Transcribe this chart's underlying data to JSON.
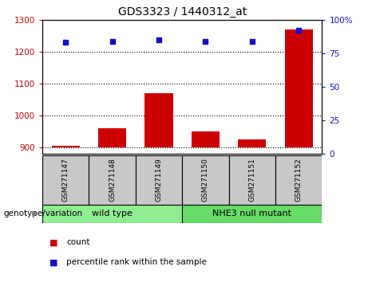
{
  "title": "GDS3323 / 1440312_at",
  "samples": [
    "GSM271147",
    "GSM271148",
    "GSM271149",
    "GSM271150",
    "GSM271151",
    "GSM271152"
  ],
  "counts": [
    906,
    960,
    1070,
    950,
    925,
    1270
  ],
  "percentile_ranks": [
    83,
    84,
    85,
    84,
    84,
    92
  ],
  "ylim_left": [
    880,
    1300
  ],
  "ylim_right": [
    0,
    100
  ],
  "yticks_left": [
    900,
    1000,
    1100,
    1200,
    1300
  ],
  "yticks_right": [
    0,
    25,
    50,
    75,
    100
  ],
  "bar_color": "#cc0000",
  "dot_color": "#1111cc",
  "xlabel": "genotype/variation",
  "legend_count_label": "count",
  "legend_percentile_label": "percentile rank within the sample",
  "bar_baseline": 900,
  "bar_width": 0.6,
  "sample_box_color": "#c8c8c8",
  "wt_color": "#90ee90",
  "nhe_color": "#66dd66",
  "group_border_color": "#000000"
}
